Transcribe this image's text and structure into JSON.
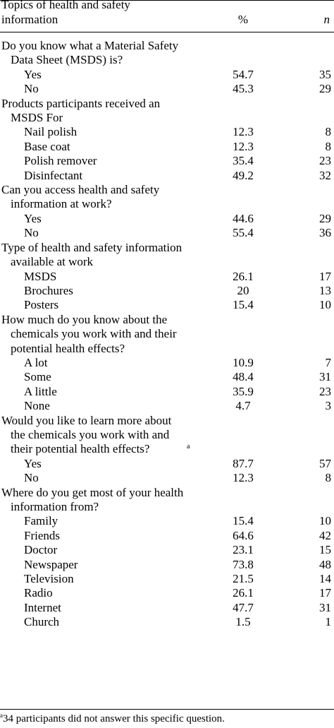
{
  "header": {
    "topic_label": "Topics of health and safety information",
    "percent_label": "%",
    "n_label": "n"
  },
  "sections": [
    {
      "question": "Do you know what a Material Safety Data Sheet (MSDS) is?",
      "note_mark": "",
      "options": [
        {
          "label": "Yes",
          "percent": "54.7",
          "n": "35"
        },
        {
          "label": "No",
          "percent": "45.3",
          "n": "29"
        }
      ]
    },
    {
      "question": "Products participants received an MSDS For",
      "note_mark": "",
      "options": [
        {
          "label": "Nail polish",
          "percent": "12.3",
          "n": "8"
        },
        {
          "label": "Base coat",
          "percent": "12.3",
          "n": "8"
        },
        {
          "label": "Polish remover",
          "percent": "35.4",
          "n": "23"
        },
        {
          "label": "Disinfectant",
          "percent": "49.2",
          "n": "32"
        }
      ]
    },
    {
      "question": "Can you access health and safety information at work?",
      "note_mark": "",
      "options": [
        {
          "label": "Yes",
          "percent": "44.6",
          "n": "29"
        },
        {
          "label": "No",
          "percent": "55.4",
          "n": "36"
        }
      ]
    },
    {
      "question": "Type of health and safety information available at work",
      "note_mark": "",
      "options": [
        {
          "label": "MSDS",
          "percent": "26.1",
          "n": "17"
        },
        {
          "label": "Brochures",
          "percent": "20",
          "n": "13"
        },
        {
          "label": "Posters",
          "percent": "15.4",
          "n": "10"
        }
      ]
    },
    {
      "question": "How much do you know about the chemicals you work with and their potential health effects?",
      "note_mark": "",
      "options": [
        {
          "label": "A lot",
          "percent": "10.9",
          "n": "7"
        },
        {
          "label": "Some",
          "percent": "48.4",
          "n": "31"
        },
        {
          "label": "A little",
          "percent": "35.9",
          "n": "23"
        },
        {
          "label": "None",
          "percent": "4.7",
          "n": "3"
        }
      ]
    },
    {
      "question": "Would you like to learn more about the chemicals you work with and their potential health effects?",
      "note_mark": "a",
      "options": [
        {
          "label": "Yes",
          "percent": "87.7",
          "n": "57"
        },
        {
          "label": "No",
          "percent": "12.3",
          "n": "8"
        }
      ]
    },
    {
      "question": "Where do you get most of your health information from?",
      "note_mark": "",
      "options": [
        {
          "label": "Family",
          "percent": "15.4",
          "n": "10"
        },
        {
          "label": "Friends",
          "percent": "64.6",
          "n": "42"
        },
        {
          "label": "Doctor",
          "percent": "23.1",
          "n": "15"
        },
        {
          "label": "Newspaper",
          "percent": "73.8",
          "n": "48"
        },
        {
          "label": "Television",
          "percent": "21.5",
          "n": "14"
        },
        {
          "label": "Radio",
          "percent": "26.1",
          "n": "17"
        },
        {
          "label": "Internet",
          "percent": "47.7",
          "n": "31"
        },
        {
          "label": "Church",
          "percent": "1.5",
          "n": "1"
        }
      ]
    }
  ],
  "footnote": {
    "mark": "a",
    "text": "34 participants did not answer this specific question."
  }
}
